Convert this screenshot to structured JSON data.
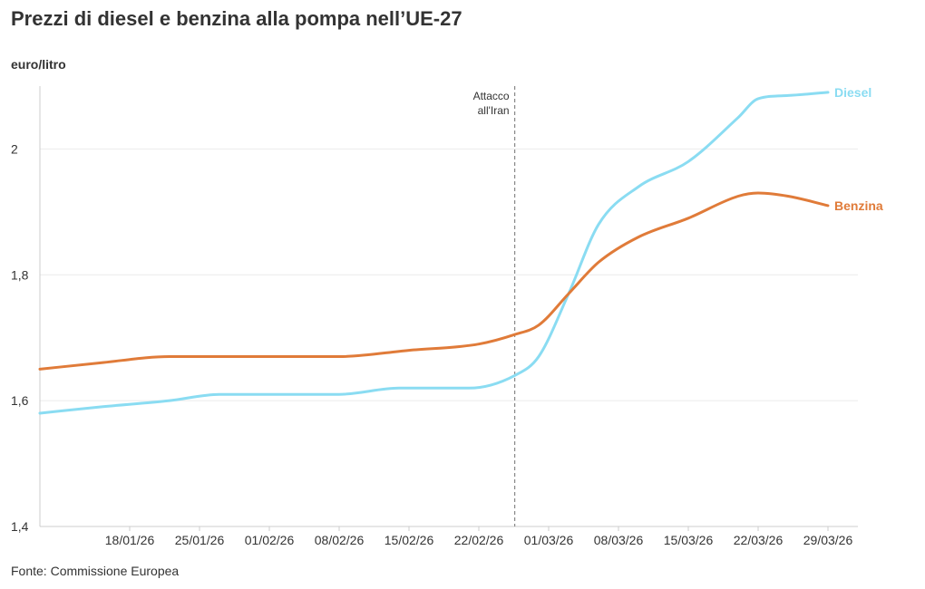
{
  "title": "Prezzi di diesel e benzina alla pompa nell’UE-27",
  "unit_label": "euro/litro",
  "source": "Fonte: Commissione Europea",
  "chart_data": {
    "type": "line",
    "title": "Prezzi di diesel e benzina alla pompa nell’UE-27",
    "ylabel": "euro/litro",
    "xlabel": "",
    "ylim": [
      1.4,
      2.1
    ],
    "yticks": [
      1.4,
      1.6,
      1.8,
      2.0
    ],
    "ytick_labels": [
      "1,4",
      "1,6",
      "1,8",
      "2"
    ],
    "xlim": [
      -9,
      73
    ],
    "x_unit": "days since 18/01/26",
    "xticks": [
      0,
      7,
      14,
      21,
      28,
      35,
      42,
      49,
      56,
      63,
      70
    ],
    "xtick_labels": [
      "18/01/26",
      "25/01/26",
      "01/02/26",
      "08/02/26",
      "15/02/26",
      "22/02/26",
      "01/03/26",
      "08/03/26",
      "15/03/26",
      "22/03/26",
      "29/03/26"
    ],
    "annotation": {
      "x": 38.6,
      "text_lines": [
        "Attacco",
        "all'Iran"
      ]
    },
    "series": [
      {
        "name": "Diesel",
        "color": "#8adcf2",
        "x": [
          -9,
          -3,
          4,
          9,
          14,
          21,
          27,
          34,
          38.6,
          41,
          44,
          47,
          51,
          56,
          61,
          63,
          66,
          70
        ],
        "y": [
          1.58,
          1.59,
          1.6,
          1.61,
          1.61,
          1.61,
          1.62,
          1.62,
          1.64,
          1.67,
          1.77,
          1.88,
          1.94,
          1.98,
          2.05,
          2.08,
          2.085,
          2.09
        ]
      },
      {
        "name": "Benzina",
        "color": "#e07b39",
        "x": [
          -9,
          -3,
          4,
          9,
          14,
          21,
          28,
          35,
          38.6,
          41,
          44,
          47,
          51,
          56,
          61,
          63,
          66,
          70
        ],
        "y": [
          1.65,
          1.66,
          1.67,
          1.67,
          1.67,
          1.67,
          1.68,
          1.69,
          1.705,
          1.72,
          1.77,
          1.82,
          1.86,
          1.89,
          1.925,
          1.93,
          1.925,
          1.91
        ]
      }
    ]
  }
}
